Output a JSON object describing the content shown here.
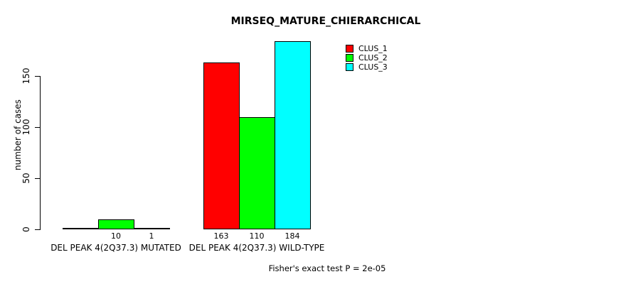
{
  "figure": {
    "background": "#ffffff",
    "text_color": "#000000"
  },
  "chart_data": {
    "type": "bar",
    "title": "MIRSEQ_MATURE_CHIERARCHICAL",
    "ylabel": "number of cases",
    "xlabel": "",
    "footer": "Fisher's exact test P = 2e-05",
    "ylim": [
      0,
      184
    ],
    "yticks": [
      0,
      50,
      100,
      150
    ],
    "grid": false,
    "legend_position": "top-right-inside",
    "categories": [
      "DEL PEAK 4(2Q37.3) MUTATED",
      "DEL PEAK 4(2Q37.3) WILD-TYPE"
    ],
    "series": [
      {
        "name": "CLUS_1",
        "color": "#ff0000",
        "values": [
          0,
          163
        ]
      },
      {
        "name": "CLUS_2",
        "color": "#00ff00",
        "values": [
          10,
          110
        ]
      },
      {
        "name": "CLUS_3",
        "color": "#00ffff",
        "values": [
          1,
          184
        ]
      }
    ],
    "bar_value_labels": [
      [
        "",
        "10",
        "1"
      ],
      [
        "163",
        "110",
        "184"
      ]
    ]
  }
}
